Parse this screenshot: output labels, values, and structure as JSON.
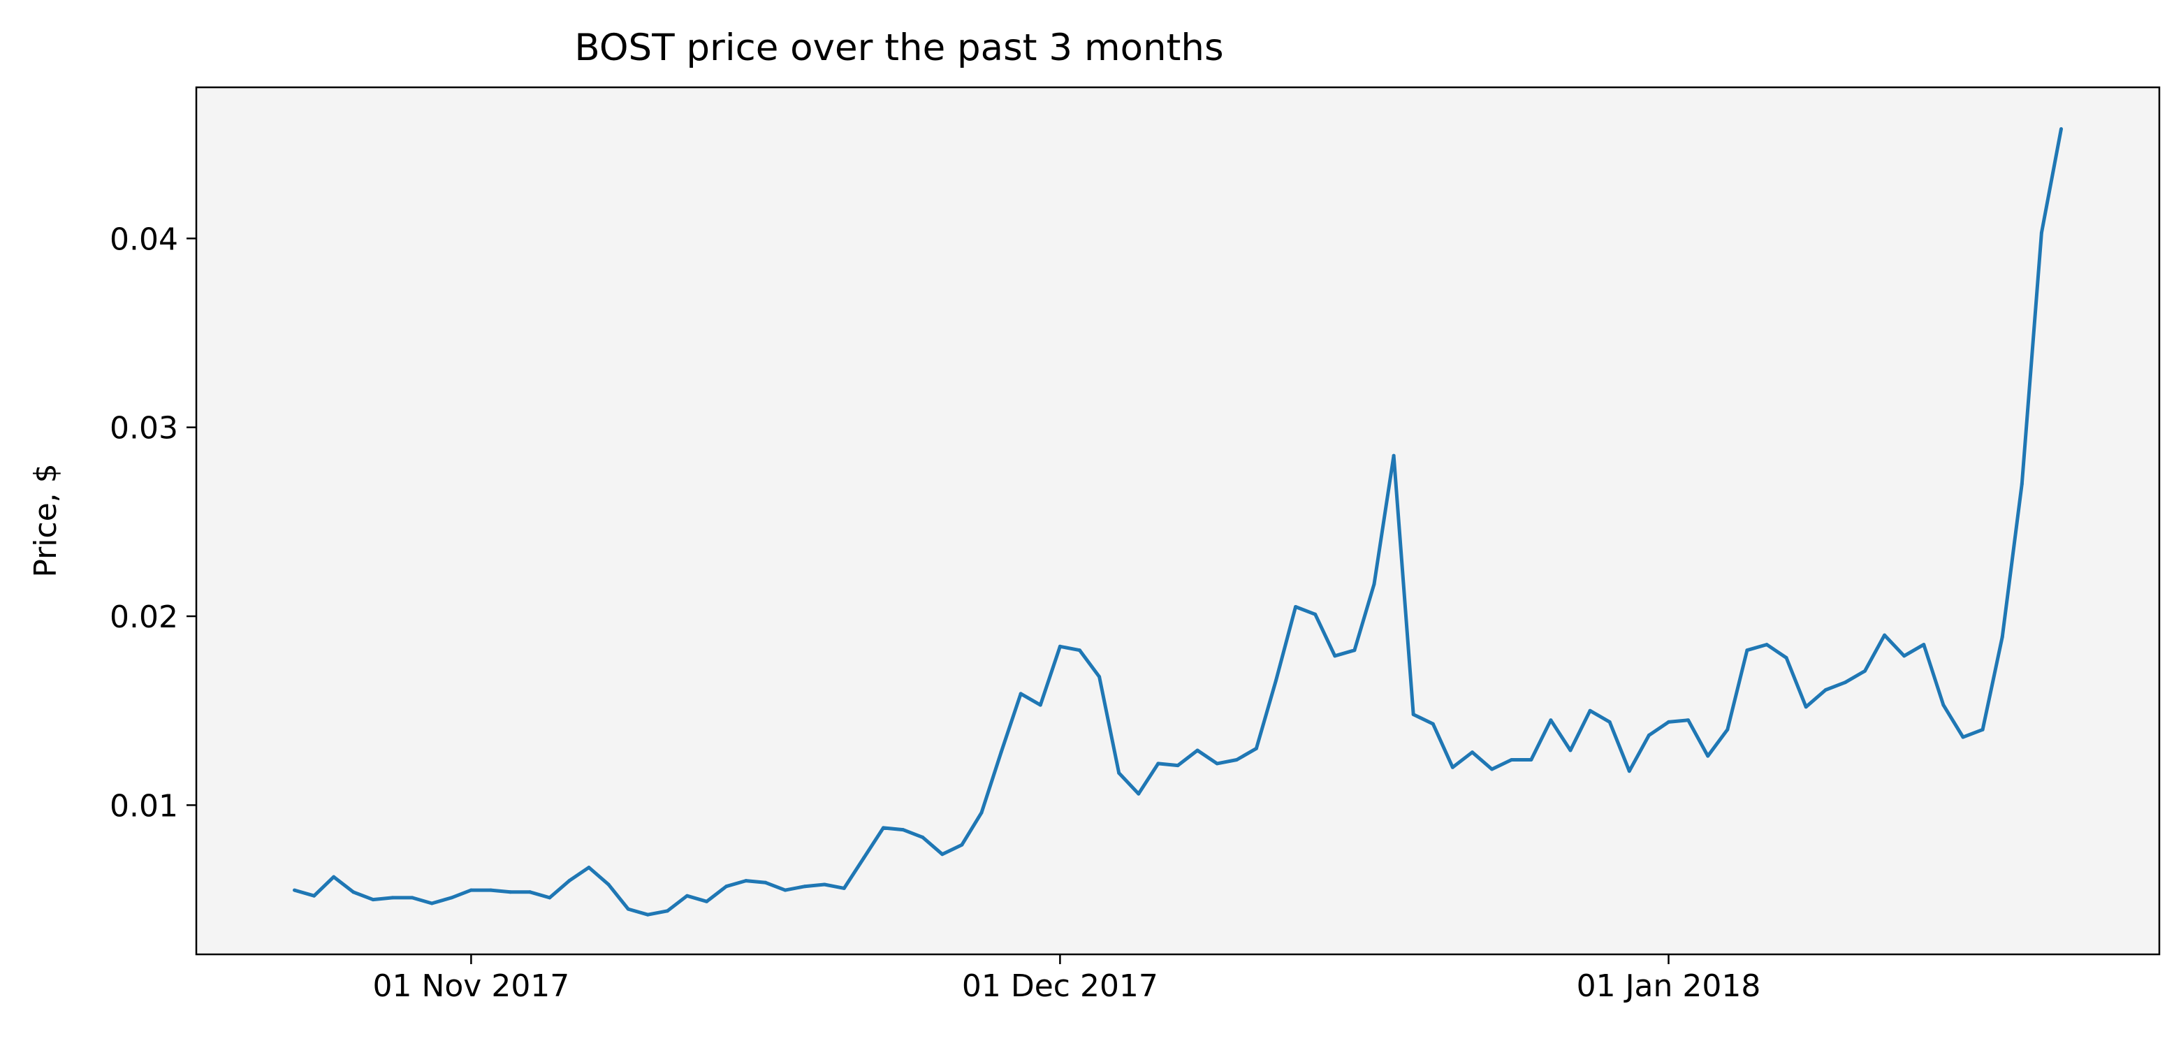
{
  "chart_data": {
    "type": "line",
    "title": "BOST price over the past 3 months",
    "xlabel": "",
    "ylabel": "Price, $",
    "grid": false,
    "legend": "none",
    "background_color": "#f4f4f4",
    "line_color": "#1f77b4",
    "x_start": "2017-10-23",
    "x_step_days": 1,
    "xlim": [
      "2017-10-18",
      "2018-01-26"
    ],
    "ylim": [
      0.0021,
      0.048
    ],
    "x_ticks": [
      {
        "date": "2017-11-01",
        "label": "01 Nov 2017"
      },
      {
        "date": "2017-12-01",
        "label": "01 Dec 2017"
      },
      {
        "date": "2018-01-01",
        "label": "01 Jan 2018"
      }
    ],
    "y_ticks": [
      {
        "value": 0.01,
        "label": "0.01"
      },
      {
        "value": 0.02,
        "label": "0.02"
      },
      {
        "value": 0.03,
        "label": "0.03"
      },
      {
        "value": 0.04,
        "label": "0.04"
      }
    ],
    "series": [
      {
        "name": "",
        "values": [
          0.0055,
          0.0052,
          0.0062,
          0.0054,
          0.005,
          0.0051,
          0.0051,
          0.0048,
          0.0051,
          0.0055,
          0.0055,
          0.0054,
          0.0054,
          0.0051,
          0.006,
          0.0067,
          0.0058,
          0.0045,
          0.0042,
          0.0044,
          0.0052,
          0.0049,
          0.0057,
          0.006,
          0.0059,
          0.0055,
          0.0057,
          0.0058,
          0.0056,
          0.0072,
          0.0088,
          0.0087,
          0.0083,
          0.0074,
          0.0079,
          0.0096,
          0.0128,
          0.0159,
          0.0153,
          0.0184,
          0.0182,
          0.0168,
          0.0117,
          0.0106,
          0.0122,
          0.0121,
          0.0129,
          0.0122,
          0.0124,
          0.013,
          0.0166,
          0.0205,
          0.0201,
          0.0179,
          0.0182,
          0.0217,
          0.0285,
          0.0148,
          0.0143,
          0.012,
          0.0128,
          0.0119,
          0.0124,
          0.0124,
          0.0145,
          0.0129,
          0.015,
          0.0144,
          0.0118,
          0.0137,
          0.0144,
          0.0145,
          0.0126,
          0.014,
          0.0182,
          0.0185,
          0.0178,
          0.0152,
          0.0161,
          0.0165,
          0.0171,
          0.019,
          0.0179,
          0.0185,
          0.0153,
          0.0136,
          0.014,
          0.0189,
          0.027,
          0.0403,
          0.0458
        ]
      }
    ]
  }
}
